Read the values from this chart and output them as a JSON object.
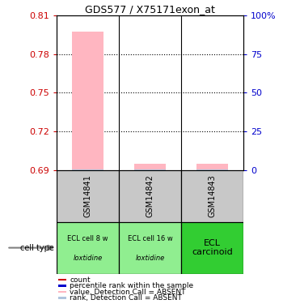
{
  "title": "GDS577 / X75171exon_at",
  "samples": [
    "GSM14841",
    "GSM14842",
    "GSM14843"
  ],
  "cell_types": [
    [
      "ECL cell 8 w",
      "loxtidine"
    ],
    [
      "ECL cell 16 w",
      "loxtidine"
    ],
    [
      "ECL\ncarcinoid",
      ""
    ]
  ],
  "cell_type_colors": [
    "#90EE90",
    "#90EE90",
    "#32CD32"
  ],
  "ylim_left": [
    0.69,
    0.81
  ],
  "ylim_right": [
    0,
    100
  ],
  "yticks_left": [
    0.69,
    0.72,
    0.75,
    0.78,
    0.81
  ],
  "yticks_right": [
    0,
    25,
    50,
    75,
    100
  ],
  "ytick_labels_right": [
    "0",
    "25",
    "50",
    "75",
    "100%"
  ],
  "bar_values": [
    0.797,
    0.695,
    0.695
  ],
  "bar_color_absent": "#FFB6C1",
  "rank_color_absent": "#B0C4DE",
  "bar_width": 0.5,
  "left_tick_color": "#CC0000",
  "right_tick_color": "#0000CC",
  "sample_bg": "#C8C8C8",
  "legend_items": [
    [
      "#CC0000",
      "count"
    ],
    [
      "#0000CC",
      "percentile rank within the sample"
    ],
    [
      "#FFB6C1",
      "value, Detection Call = ABSENT"
    ],
    [
      "#B0C4DE",
      "rank, Detection Call = ABSENT"
    ]
  ]
}
